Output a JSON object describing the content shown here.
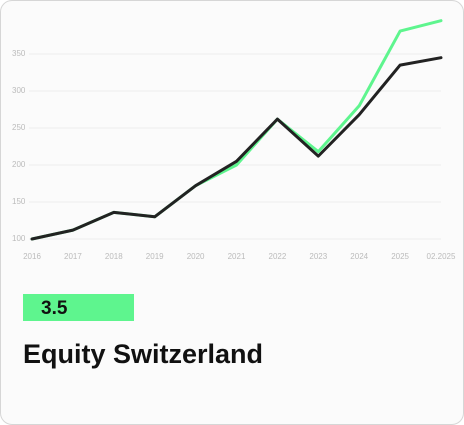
{
  "card": {
    "badge": "3.5"
  },
  "chart_data": {
    "type": "line",
    "title": "Equity Switzerland",
    "categories": [
      "2016",
      "2017",
      "2018",
      "2019",
      "2020",
      "2021",
      "2022",
      "2023",
      "2024",
      "2025",
      "02.2025"
    ],
    "series": [
      {
        "color": "#5ef58e",
        "values": [
          100,
          112,
          136,
          130,
          172,
          200,
          262,
          218,
          280,
          381,
          395
        ]
      },
      {
        "color": "#222222",
        "values": [
          100,
          112,
          136,
          130,
          172,
          205,
          262,
          212,
          268,
          335,
          345
        ]
      }
    ],
    "ylim": [
      90,
      400
    ],
    "yticks": [
      100,
      150,
      200,
      250,
      300,
      350
    ],
    "grid": true
  }
}
